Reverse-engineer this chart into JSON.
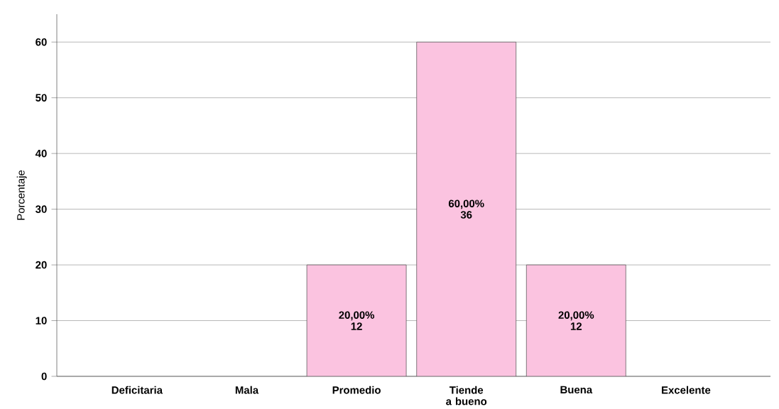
{
  "chart_data": {
    "type": "bar",
    "ylabel": "Porcentaje",
    "categories": [
      "Deficitaria",
      "Mala",
      "Promedio",
      "Tiende a bueno",
      "Buena",
      "Excelente"
    ],
    "values": [
      0,
      0,
      20,
      60,
      20,
      0
    ],
    "value_labels": [
      null,
      null,
      "20,00% 12",
      "60,00% 36",
      "20,00% 12",
      null
    ],
    "color": "#fbc3e0",
    "ylim": [
      0,
      65
    ],
    "yticks": [
      0,
      10,
      20,
      30,
      40,
      50,
      60
    ],
    "grid": "y"
  }
}
